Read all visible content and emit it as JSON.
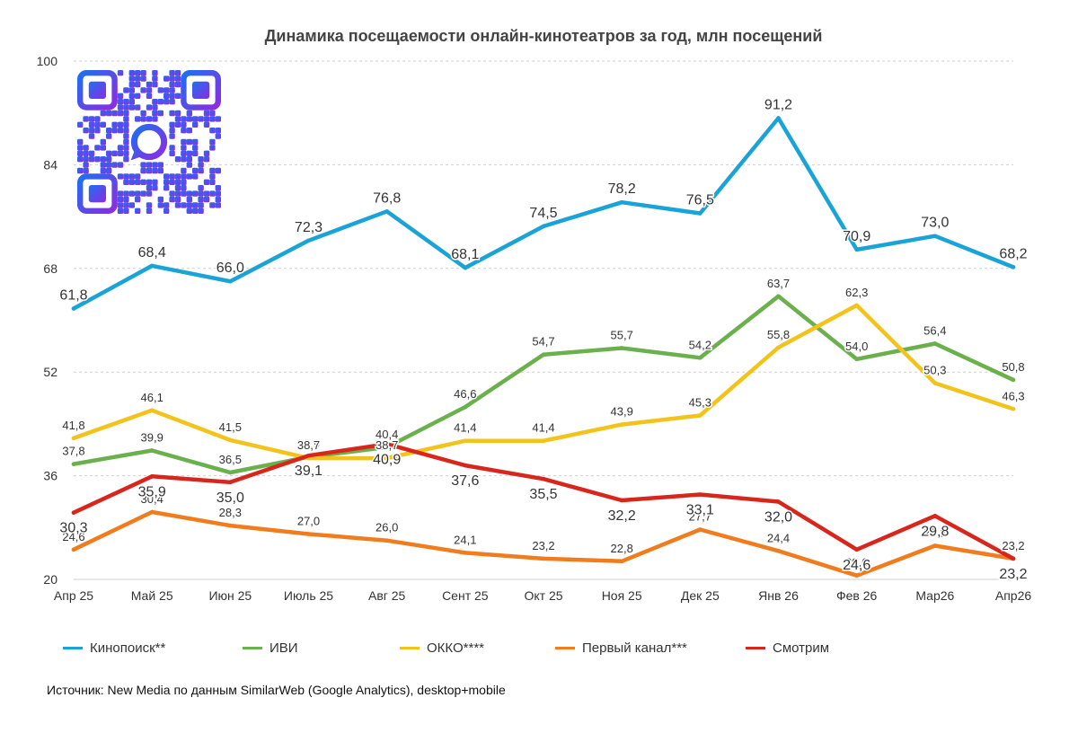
{
  "chart_data": {
    "type": "line",
    "title": "Динамика посещаемости онлайн-кинотеатров за год, млн посещений",
    "xlabel": "",
    "ylabel": "",
    "categories": [
      "Апр 25",
      "Май 25",
      "Июн 25",
      "Июль 25",
      "Авг 25",
      "Сент 25",
      "Окт 25",
      "Ноя 25",
      "Дек 25",
      "Янв 26",
      "Фев 26",
      "Мар26",
      "Апр26"
    ],
    "ylim": [
      20,
      100
    ],
    "yticks": [
      20,
      36,
      52,
      68,
      84,
      100
    ],
    "grid": "horizontal-dashed",
    "legend_position": "bottom",
    "series": [
      {
        "name": "Кинопоиск**",
        "color": "#1aa3d6",
        "values": [
          61.8,
          68.4,
          66.0,
          72.3,
          76.8,
          68.1,
          74.5,
          78.2,
          76.5,
          91.2,
          70.9,
          73.0,
          68.2
        ],
        "labels": [
          "61,8",
          "68,4",
          "66,0",
          "72,3",
          "76,8",
          "68,1",
          "74,5",
          "78,2",
          "76,5",
          "91,2",
          "70,9",
          "73,0",
          "68,2"
        ]
      },
      {
        "name": "ИВИ",
        "color": "#6ab04c",
        "values": [
          37.8,
          39.9,
          36.5,
          38.9,
          40.4,
          46.6,
          54.7,
          55.7,
          54.2,
          63.7,
          54.0,
          56.4,
          50.8
        ],
        "labels": [
          "37,8",
          "39,9",
          "36,5",
          "38,9",
          "40,4",
          "46,6",
          "54,7",
          "55,7",
          "54,2",
          "63,7",
          "54,0",
          "56,4",
          "50,8"
        ]
      },
      {
        "name": "ОККО****",
        "color": "#f2c31b",
        "values": [
          41.8,
          46.1,
          41.5,
          38.7,
          38.7,
          41.4,
          41.4,
          43.9,
          45.3,
          55.8,
          62.3,
          50.3,
          46.3
        ],
        "labels": [
          "41,8",
          "46,1",
          "41,5",
          "38,7",
          "38,7",
          "41,4",
          "41,4",
          "43,9",
          "45,3",
          "55,8",
          "62,3",
          "50,3",
          "46,3"
        ]
      },
      {
        "name": "Первый канал***",
        "color": "#f07c1d",
        "values": [
          24.6,
          30.4,
          28.3,
          27.0,
          26.0,
          24.1,
          23.2,
          22.8,
          27.7,
          24.4,
          20.6,
          25.2,
          23.2
        ],
        "labels": [
          "24,6",
          "30,4",
          "28,3",
          "27,0",
          "26,0",
          "24,1",
          "23,2",
          "22,8",
          "27,7",
          "24,4",
          "20,6",
          "25,2",
          "23,2"
        ]
      },
      {
        "name": "Смотрим",
        "color": "#d8261c",
        "values": [
          30.3,
          35.9,
          35.0,
          39.1,
          40.9,
          37.6,
          35.5,
          32.2,
          33.1,
          32.0,
          24.6,
          29.8,
          23.2
        ],
        "labels": [
          "30,3",
          "35,9",
          "35,0",
          "39,1",
          "40,9",
          "37,6",
          "35,5",
          "32,2",
          "33,1",
          "32,0",
          "24,6",
          "29,8",
          "23,2"
        ]
      }
    ]
  },
  "source_note": "Источник: New Media по данным SimilarWeb (Google Analytics), desktop+mobile"
}
